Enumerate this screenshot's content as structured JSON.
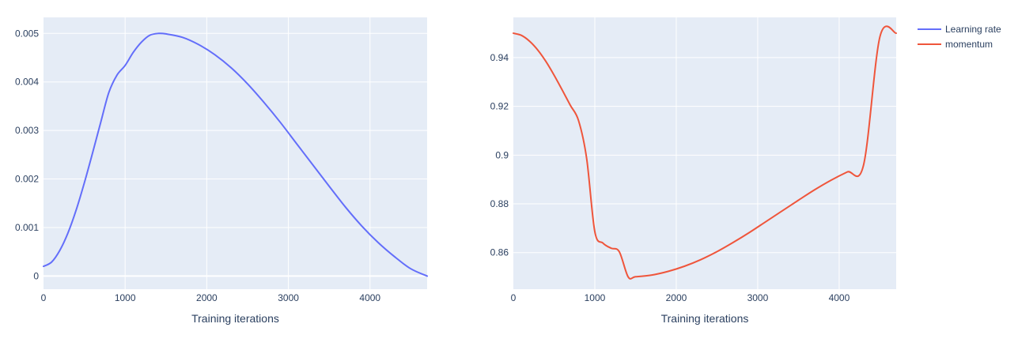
{
  "chart_data": [
    {
      "type": "line",
      "xlabel": "Training iterations",
      "ylabel": "",
      "xlim": [
        0,
        4700
      ],
      "ylim": [
        -0.00027,
        0.00533
      ],
      "x_ticks": [
        0,
        1000,
        2000,
        3000,
        4000
      ],
      "x_tick_labels": [
        "0",
        "1000",
        "2000",
        "3000",
        "4000"
      ],
      "y_ticks": [
        0,
        0.001,
        0.002,
        0.003,
        0.004,
        0.005
      ],
      "y_tick_labels": [
        "0",
        "0.001",
        "0.002",
        "0.003",
        "0.004",
        "0.005"
      ],
      "grid": true,
      "series": [
        {
          "name": "Learning rate",
          "color": "#636efa",
          "x": [
            0,
            100,
            200,
            300,
            400,
            500,
            600,
            700,
            800,
            900,
            1000,
            1100,
            1200,
            1300,
            1410,
            1500,
            1700,
            1900,
            2100,
            2300,
            2500,
            2700,
            2900,
            3100,
            3300,
            3500,
            3700,
            3900,
            4100,
            4300,
            4500,
            4700
          ],
          "y": [
            0.0002,
            0.00029,
            0.00053,
            0.00089,
            0.00136,
            0.00192,
            0.00253,
            0.00316,
            0.00378,
            0.00414,
            0.00434,
            0.00461,
            0.00482,
            0.00496,
            0.005,
            0.00499,
            0.00492,
            0.00477,
            0.00456,
            0.00429,
            0.00396,
            0.00358,
            0.00317,
            0.00273,
            0.00229,
            0.00185,
            0.00142,
            0.00103,
            0.00069,
            0.0004,
            0.00015,
            0.0
          ]
        }
      ]
    },
    {
      "type": "line",
      "xlabel": "Training iterations",
      "ylabel": "",
      "xlim": [
        0,
        4700
      ],
      "ylim": [
        0.845,
        0.9565
      ],
      "x_ticks": [
        0,
        1000,
        2000,
        3000,
        4000
      ],
      "x_tick_labels": [
        "0",
        "1000",
        "2000",
        "3000",
        "4000"
      ],
      "y_ticks": [
        0.86,
        0.88,
        0.9,
        0.92,
        0.94
      ],
      "y_tick_labels": [
        "0.86",
        "0.88",
        "0.9",
        "0.92",
        "0.94"
      ],
      "grid": true,
      "series": [
        {
          "name": "momentum",
          "color": "#ef553b",
          "x": [
            0,
            100,
            200,
            300,
            400,
            500,
            600,
            700,
            800,
            900,
            1000,
            1100,
            1200,
            1300,
            1410,
            1500,
            1700,
            1900,
            2100,
            2300,
            2500,
            2700,
            2900,
            3100,
            3300,
            3500,
            3700,
            3900,
            4100,
            4300,
            4500,
            4700
          ],
          "y": [
            0.95,
            0.9491,
            0.9467,
            0.9431,
            0.9384,
            0.9328,
            0.9267,
            0.9204,
            0.9142,
            0.8986,
            0.8686,
            0.8639,
            0.8618,
            0.8604,
            0.85,
            0.8501,
            0.8508,
            0.8523,
            0.8544,
            0.8571,
            0.8604,
            0.8642,
            0.8683,
            0.8727,
            0.8771,
            0.8815,
            0.8858,
            0.8897,
            0.8931,
            0.896,
            0.9485,
            0.95
          ]
        }
      ]
    }
  ],
  "legend": {
    "position": "top-right",
    "items": [
      {
        "label": "Learning rate",
        "color": "#636efa"
      },
      {
        "label": "momentum",
        "color": "#ef553b"
      }
    ]
  },
  "style": {
    "plot_bg": "#e5ecf6",
    "grid_color": "#ffffff",
    "text_color": "#2a3f5f"
  }
}
